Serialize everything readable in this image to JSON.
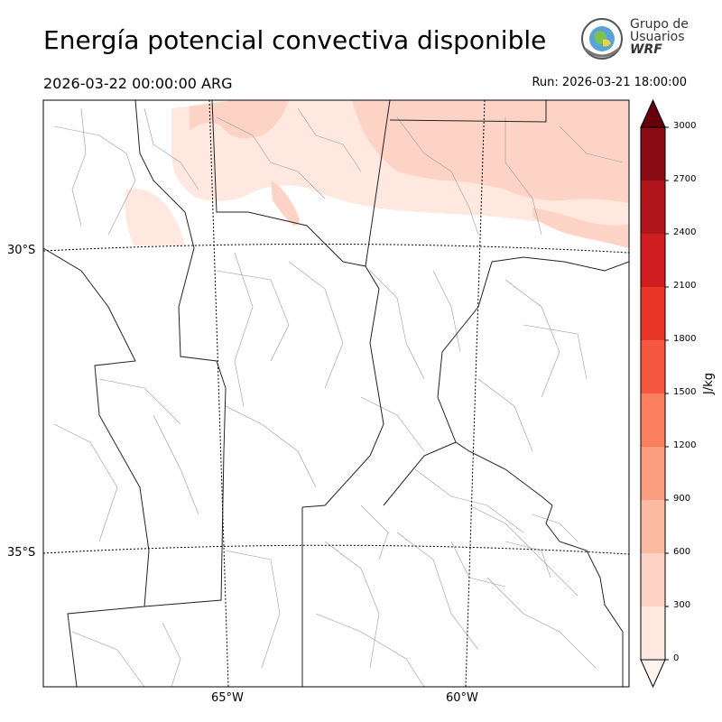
{
  "title": "Energía potencial convectiva disponible",
  "valid_time": "2026-03-22 00:00:00 ARG",
  "run_time": "Run: 2026-03-21 18:00:00",
  "logo": {
    "line1": "Grupo de",
    "line2": "Usuarios",
    "line3": "WRF",
    "icon": "globe-emblem-icon"
  },
  "map": {
    "latitude_labels": [
      "30°S",
      "35°S"
    ],
    "longitude_labels": [
      "65°W",
      "60°W"
    ],
    "variable": "CAPE",
    "field_description_visible_levels": "0–300 and 300–600 J/kg shading in northern band"
  },
  "colorbar": {
    "unit": "J/kg",
    "ticks": [
      "0",
      "300",
      "600",
      "900",
      "1200",
      "1500",
      "1800",
      "2100",
      "2400",
      "2700",
      "3000"
    ],
    "colors": [
      "#fee8e0",
      "#fdd3c6",
      "#fcbba1",
      "#fc9c7e",
      "#fb7f5f",
      "#f6573f",
      "#ea3627",
      "#cf1c1f",
      "#b1141a",
      "#8a0b14"
    ],
    "over_color": "#67000d",
    "under_color": "#fff5f0"
  }
}
